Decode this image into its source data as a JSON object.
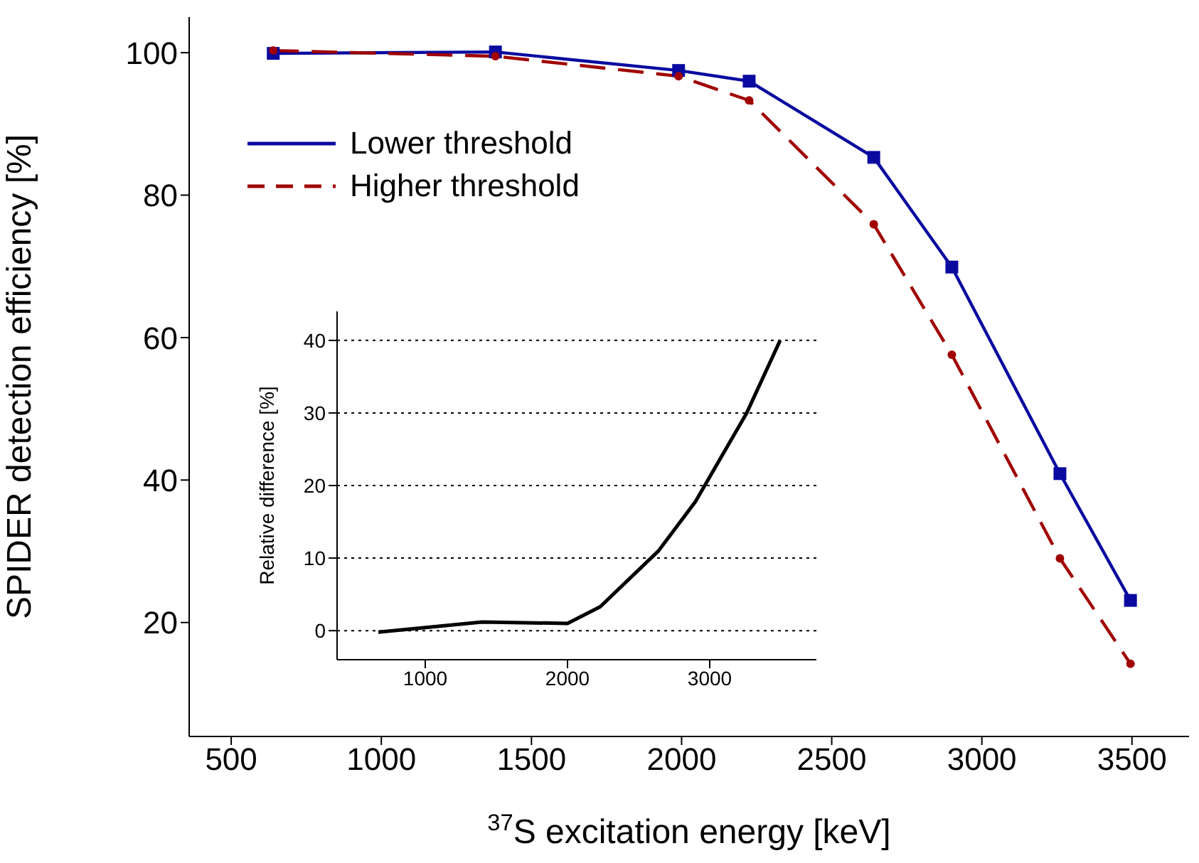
{
  "chart_data": [
    {
      "type": "line",
      "xlabel": "$^{37}$S excitation energy [keV]",
      "ylabel": "SPIDER detection efficiency [%]",
      "x": [
        640,
        1380,
        1990,
        2225,
        2640,
        2900,
        3260,
        3495
      ],
      "series": [
        {
          "name": "Lower threshold",
          "color": "#0a0aa0",
          "marker": "square",
          "line_style": "solid",
          "values": [
            99.9,
            100.1,
            97.5,
            96.0,
            85.3,
            69.9,
            40.9,
            23.1
          ]
        },
        {
          "name": "Higher threshold",
          "color": "#a00000",
          "marker": "circle",
          "line_style": "dashed",
          "values": [
            100.3,
            99.5,
            96.7,
            93.3,
            75.9,
            57.6,
            29.0,
            14.2
          ]
        }
      ],
      "xlim": [
        360,
        3690
      ],
      "ylim": [
        4,
        105
      ],
      "xticks": [
        500,
        1000,
        1500,
        2000,
        2500,
        3000,
        3500
      ],
      "yticks": [
        20,
        40,
        60,
        80,
        100
      ],
      "legend": "top left"
    },
    {
      "type": "line",
      "ylabel": "Relative difference [%]",
      "x": [
        670,
        1400,
        2000,
        2230,
        2640,
        2900,
        3260,
        3495
      ],
      "series": [
        {
          "color": "#000000",
          "values": [
            -0.2,
            1.2,
            1.0,
            3.3,
            11,
            17.8,
            30,
            40
          ]
        }
      ],
      "xlim": [
        380,
        3750
      ],
      "ylim": [
        -4,
        44
      ],
      "xticks": [
        1000,
        2000,
        3000
      ],
      "yticks": [
        0,
        10,
        20,
        30,
        40
      ],
      "grid": "y"
    }
  ]
}
